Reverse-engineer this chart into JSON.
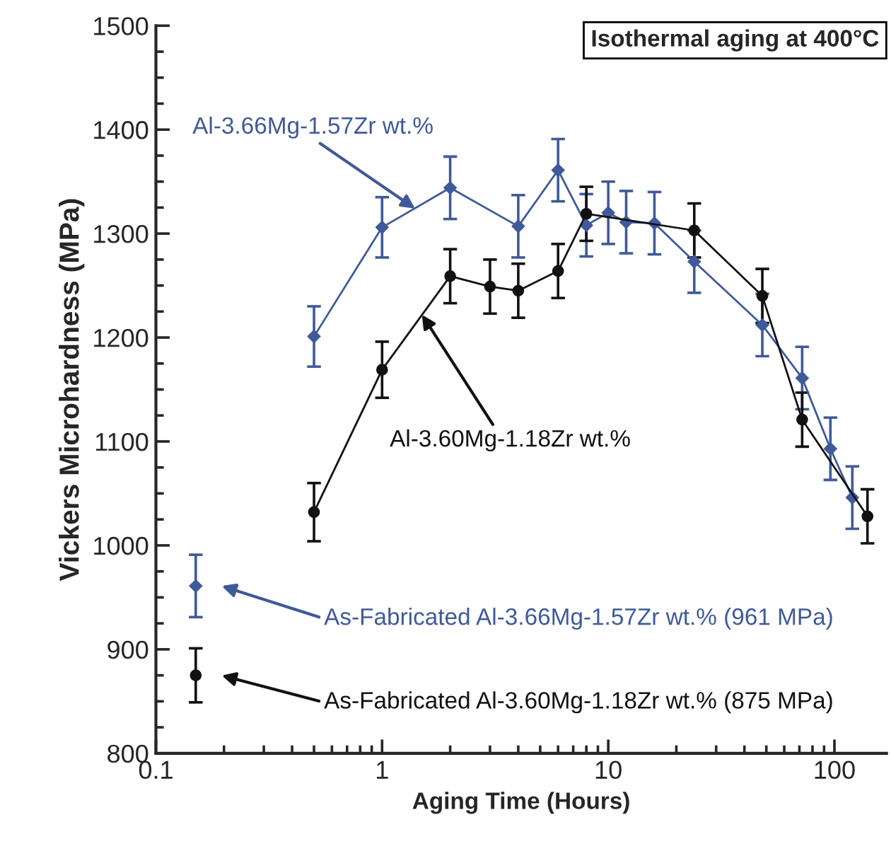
{
  "chart_data": {
    "type": "line",
    "xlabel": "Aging Time (Hours)",
    "ylabel": "Vickers Microhardness (MPa)",
    "log": "x",
    "xlim": [
      0.1,
      170
    ],
    "xticks": [
      0.1,
      1,
      10,
      100
    ],
    "ylim": [
      800,
      1500
    ],
    "yticks": [
      800,
      900,
      1000,
      1100,
      1200,
      1300,
      1400,
      1500
    ],
    "grid": false,
    "marker": "circle",
    "line_style": "solid",
    "series": [
      {
        "marker": "diamond",
        "color": "#3f5a9a",
        "x": [
          0.5,
          1,
          2,
          4,
          6,
          8,
          10,
          12,
          16,
          24,
          48,
          72,
          96,
          120
        ],
        "values": [
          1201,
          1306,
          1344,
          1307,
          1361,
          1308,
          1320,
          1311,
          1310,
          1273,
          1212,
          1161,
          1093,
          1046
        ],
        "errors": [
          29,
          29,
          30,
          30,
          30,
          30,
          30,
          30,
          30,
          30,
          30,
          30,
          30,
          30
        ]
      },
      {
        "color": "#111111",
        "x": [
          0.5,
          1,
          2,
          3,
          4,
          6,
          8,
          24,
          48,
          72,
          140
        ],
        "values": [
          1032,
          1169,
          1259,
          1249,
          1245,
          1264,
          1319,
          1303,
          1240,
          1121,
          1028
        ],
        "errors": [
          28,
          27,
          26,
          26,
          26,
          26,
          26,
          26,
          26,
          26,
          26
        ]
      },
      {
        "type": "scatter",
        "marker": "diamond",
        "color": "#3f5a9a",
        "x": [
          0.15
        ],
        "values": [
          961
        ],
        "errors": [
          30
        ]
      },
      {
        "type": "scatter",
        "color": "#111111",
        "x": [
          0.15
        ],
        "values": [
          875
        ],
        "errors": [
          26
        ]
      }
    ],
    "annotations": [
      "Isothermal aging at 400°C",
      {
        "text": "Al-3.66Mg-1.57Zr wt.%",
        "x": 1.4,
        "y": 1324
      },
      {
        "text": "Al-3.60Mg-1.18Zr wt.%",
        "x": 1.5,
        "y": 1222
      },
      "As-Fabricated Al-3.66Mg-1.57Zr wt.% (961 MPa)",
      "As-Fabricated Al-3.60Mg-1.18Zr wt.% (875 MPa)"
    ]
  }
}
